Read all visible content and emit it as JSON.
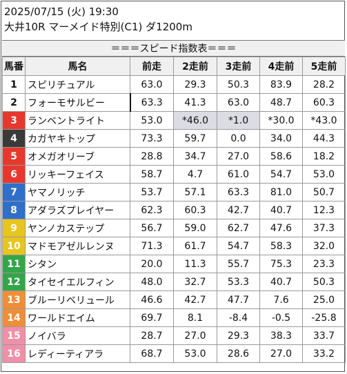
{
  "header": {
    "date_line": "2025/07/15 (火) 19:30",
    "race_line": "大井10R マーメイド特別(C1) ダ1200m"
  },
  "table_title": "＝＝＝スピード指数表＝＝＝",
  "columns": [
    "馬番",
    "馬名",
    "前走",
    "2走前",
    "3走前",
    "4走前",
    "5走前"
  ],
  "rows": [
    {
      "num": "1",
      "name": "スピリチュアル",
      "v": [
        "63.0",
        "29.3",
        "50.3",
        "83.9",
        "28.2"
      ],
      "bg": "#ffffff",
      "fg": "#111111"
    },
    {
      "num": "2",
      "name": "フォーモサルビー",
      "v": [
        "63.3",
        "41.3",
        "63.0",
        "48.7",
        "60.3"
      ],
      "bg": "#ffffff",
      "fg": "#111111"
    },
    {
      "num": "3",
      "name": "ランベントライト",
      "v": [
        "53.0",
        "*46.0",
        "*1.0",
        "*30.0",
        "*43.0"
      ],
      "bg": "#e8382e",
      "fg": "#ffffff"
    },
    {
      "num": "4",
      "name": "カガヤキトップ",
      "v": [
        "73.3",
        "59.7",
        "0.0",
        "34.0",
        "44.3"
      ],
      "bg": "#3a3a3a",
      "fg": "#ffffff"
    },
    {
      "num": "5",
      "name": "オメガオリーブ",
      "v": [
        "28.8",
        "34.7",
        "27.0",
        "58.6",
        "18.2"
      ],
      "bg": "#e8382e",
      "fg": "#ffffff"
    },
    {
      "num": "6",
      "name": "リッキーフェイス",
      "v": [
        "58.7",
        "4.7",
        "61.0",
        "54.7",
        "53.0"
      ],
      "bg": "#e8382e",
      "fg": "#ffffff"
    },
    {
      "num": "7",
      "name": "ヤマノリッチ",
      "v": [
        "53.7",
        "57.1",
        "63.3",
        "81.0",
        "50.7"
      ],
      "bg": "#2f6fc9",
      "fg": "#ffffff"
    },
    {
      "num": "8",
      "name": "アダラズプレイヤー",
      "v": [
        "62.3",
        "60.3",
        "42.7",
        "40.7",
        "12.3"
      ],
      "bg": "#2f6fc9",
      "fg": "#ffffff"
    },
    {
      "num": "9",
      "name": "ヤンノカステップ",
      "v": [
        "56.7",
        "59.0",
        "62.7",
        "47.6",
        "37.3"
      ],
      "bg": "#e8c51e",
      "fg": "#ffffff"
    },
    {
      "num": "10",
      "name": "マドモアゼルレンヌ",
      "v": [
        "71.3",
        "61.7",
        "54.7",
        "58.3",
        "32.0"
      ],
      "bg": "#e8c51e",
      "fg": "#ffffff"
    },
    {
      "num": "11",
      "name": "シタン",
      "v": [
        "20.0",
        "11.3",
        "55.7",
        "75.3",
        "23.3"
      ],
      "bg": "#33a64a",
      "fg": "#ffffff"
    },
    {
      "num": "12",
      "name": "タイセイエルフィン",
      "v": [
        "48.0",
        "32.7",
        "53.3",
        "40.7",
        "50.3"
      ],
      "bg": "#33a64a",
      "fg": "#ffffff"
    },
    {
      "num": "13",
      "name": "ブルーリベリュール",
      "v": [
        "46.6",
        "42.7",
        "47.7",
        "7.6",
        "25.0"
      ],
      "bg": "#ef8e36",
      "fg": "#ffffff"
    },
    {
      "num": "14",
      "name": "ワールドエイム",
      "v": [
        "69.7",
        "8.1",
        "-8.4",
        "-0.5",
        "-25.8"
      ],
      "bg": "#ef8e36",
      "fg": "#ffffff"
    },
    {
      "num": "15",
      "name": "ノイバラ",
      "v": [
        "28.7",
        "27.0",
        "29.3",
        "38.3",
        "33.7"
      ],
      "bg": "#f08fa8",
      "fg": "#ffffff"
    },
    {
      "num": "16",
      "name": "レディーティアラ",
      "v": [
        "68.7",
        "53.0",
        "28.6",
        "27.0",
        "33.2"
      ],
      "bg": "#f08fa8",
      "fg": "#ffffff"
    }
  ]
}
